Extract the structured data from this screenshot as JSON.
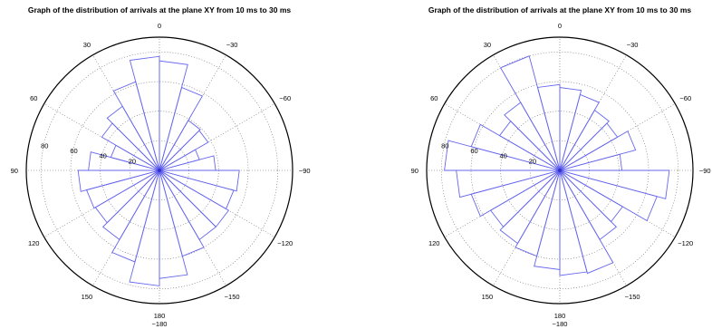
{
  "chart_data": [
    {
      "type": "polar-histogram",
      "title": "Graph of the distribution of arrivals at the plane XY from 10 ms to 30 ms",
      "angle_unit": "degrees",
      "angle_zero": "top",
      "angle_direction": "counter-clockwise",
      "r_max": 90,
      "r_rings": [
        20,
        40,
        60,
        80
      ],
      "r_labels": [
        "20",
        "40",
        "60",
        "80"
      ],
      "r_label_direction_deg": 80,
      "angle_ticks": [
        {
          "angle": 0,
          "label": "0"
        },
        {
          "angle": 30,
          "label": "30"
        },
        {
          "angle": 60,
          "label": "60"
        },
        {
          "angle": 90,
          "label": "90"
        },
        {
          "angle": 120,
          "label": "120"
        },
        {
          "angle": 150,
          "label": "150"
        },
        {
          "angle": 180,
          "label": "180"
        },
        {
          "angle": 180.0001,
          "label": "−180"
        },
        {
          "angle": -150,
          "label": "−150"
        },
        {
          "angle": -120,
          "label": "−120"
        },
        {
          "angle": -90,
          "label": "−90"
        },
        {
          "angle": -60,
          "label": "−60"
        },
        {
          "angle": -30,
          "label": "−30"
        }
      ],
      "bin_width_deg": 15,
      "bin_centers_deg": [
        7.5,
        22.5,
        37.5,
        52.5,
        67.5,
        82.5,
        97.5,
        112.5,
        127.5,
        142.5,
        157.5,
        172.5,
        -172.5,
        -157.5,
        -142.5,
        -127.5,
        -112.5,
        -97.5,
        -82.5,
        -67.5,
        -52.5,
        -37.5,
        -22.5,
        -7.5
      ],
      "values": [
        77,
        62,
        50,
        45,
        34,
        48,
        55,
        51,
        50,
        54,
        64,
        78,
        73,
        60,
        54,
        54,
        52,
        54,
        38,
        28,
        38,
        39,
        58,
        74
      ],
      "grid": true,
      "colors": {
        "bars": "#6666ee",
        "grid": "#666666",
        "frame": "#000000"
      }
    },
    {
      "type": "polar-histogram",
      "title": "Graph of the distribution of arrivals at the plane XY from 10 ms to 30 ms",
      "angle_unit": "degrees",
      "angle_zero": "top",
      "angle_direction": "counter-clockwise",
      "r_max": 90,
      "r_rings": [
        20,
        40,
        60,
        80
      ],
      "r_labels": [
        "20",
        "40",
        "60",
        "80"
      ],
      "r_label_direction_deg": 80,
      "angle_ticks": [
        {
          "angle": 0,
          "label": "0"
        },
        {
          "angle": 30,
          "label": "30"
        },
        {
          "angle": 60,
          "label": "60"
        },
        {
          "angle": 90,
          "label": "90"
        },
        {
          "angle": 120,
          "label": "120"
        },
        {
          "angle": 150,
          "label": "150"
        },
        {
          "angle": 180,
          "label": "180"
        },
        {
          "angle": 180.0001,
          "label": "−180"
        },
        {
          "angle": -150,
          "label": "−150"
        },
        {
          "angle": -120,
          "label": "−120"
        },
        {
          "angle": -90,
          "label": "−90"
        },
        {
          "angle": -60,
          "label": "−60"
        },
        {
          "angle": -30,
          "label": "−30"
        }
      ],
      "bin_width_deg": 15,
      "bin_centers_deg": [
        7.5,
        22.5,
        37.5,
        52.5,
        67.5,
        82.5,
        97.5,
        112.5,
        127.5,
        142.5,
        157.5,
        172.5,
        -172.5,
        -157.5,
        -142.5,
        -127.5,
        -112.5,
        -97.5,
        -82.5,
        -67.5,
        -52.5,
        -37.5,
        -22.5,
        -7.5
      ],
      "values": [
        58,
        80,
        53,
        47,
        62,
        78,
        70,
        62,
        54,
        57,
        60,
        67,
        71,
        72,
        54,
        49,
        68,
        74,
        42,
        53,
        45,
        47,
        53,
        56
      ],
      "grid": true,
      "colors": {
        "bars": "#6666ee",
        "grid": "#666666",
        "frame": "#000000"
      }
    }
  ]
}
